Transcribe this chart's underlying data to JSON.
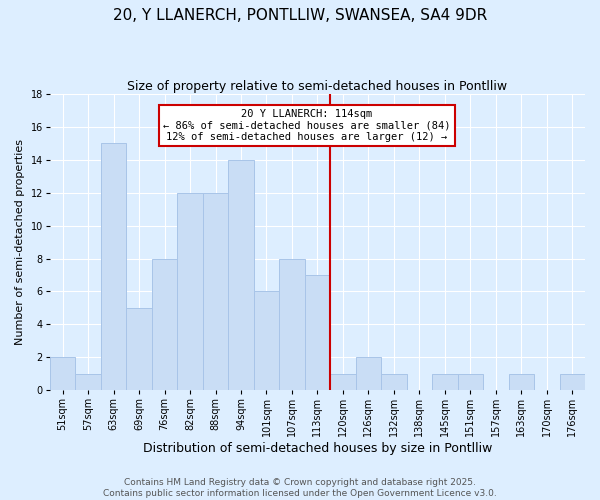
{
  "title": "20, Y LLANERCH, PONTLLIW, SWANSEA, SA4 9DR",
  "subtitle": "Size of property relative to semi-detached houses in Pontlliw",
  "xlabel": "Distribution of semi-detached houses by size in Pontlliw",
  "ylabel": "Number of semi-detached properties",
  "bar_labels": [
    "51sqm",
    "57sqm",
    "63sqm",
    "69sqm",
    "76sqm",
    "82sqm",
    "88sqm",
    "94sqm",
    "101sqm",
    "107sqm",
    "113sqm",
    "120sqm",
    "126sqm",
    "132sqm",
    "138sqm",
    "145sqm",
    "151sqm",
    "157sqm",
    "163sqm",
    "170sqm",
    "176sqm"
  ],
  "bar_values": [
    2,
    1,
    15,
    5,
    8,
    12,
    12,
    14,
    6,
    8,
    7,
    1,
    2,
    1,
    0,
    1,
    1,
    0,
    1,
    0,
    1
  ],
  "bar_color": "#c9ddf5",
  "bar_edge_color": "#a8c4e8",
  "highlight_line_index": 10,
  "highlight_line_color": "#cc0000",
  "annotation_title": "20 Y LLANERCH: 114sqm",
  "annotation_line1": "← 86% of semi-detached houses are smaller (84)",
  "annotation_line2": "12% of semi-detached houses are larger (12) →",
  "annotation_box_color": "#ffffff",
  "annotation_box_edge_color": "#cc0000",
  "ylim": [
    0,
    18
  ],
  "yticks": [
    0,
    2,
    4,
    6,
    8,
    10,
    12,
    14,
    16,
    18
  ],
  "background_color": "#ddeeff",
  "plot_background_color": "#ddeeff",
  "footer_line1": "Contains HM Land Registry data © Crown copyright and database right 2025.",
  "footer_line2": "Contains public sector information licensed under the Open Government Licence v3.0.",
  "title_fontsize": 11,
  "subtitle_fontsize": 9,
  "xlabel_fontsize": 9,
  "ylabel_fontsize": 8,
  "tick_fontsize": 7,
  "footer_fontsize": 6.5,
  "annotation_fontsize": 7.5
}
